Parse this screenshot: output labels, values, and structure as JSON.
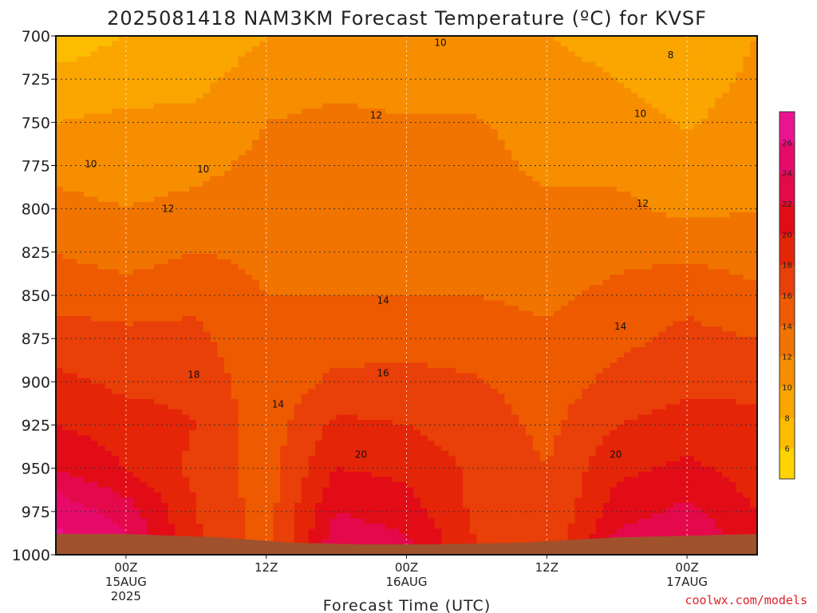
{
  "chart_data": {
    "type": "heatmap",
    "title": "2025081418 NAM3KM Forecast Temperature (ºC) for KVSF",
    "xlabel": "Forecast Time (UTC)",
    "ylabel": "",
    "credit": "coolwx.com/models",
    "y_axis": {
      "inverted": true,
      "ylim": [
        1000,
        700
      ],
      "ticks": [
        700,
        725,
        750,
        775,
        800,
        825,
        850,
        875,
        900,
        925,
        950,
        975,
        1000
      ]
    },
    "x_axis": {
      "xlim_hours": [
        -6,
        54
      ],
      "ticks": [
        {
          "hour": 0,
          "lines": [
            "00Z",
            "15AUG",
            "2025"
          ]
        },
        {
          "hour": 12,
          "lines": [
            "12Z"
          ]
        },
        {
          "hour": 24,
          "lines": [
            "00Z",
            "16AUG"
          ]
        },
        {
          "hour": 36,
          "lines": [
            "12Z"
          ]
        },
        {
          "hour": 48,
          "lines": [
            "00Z",
            "17AUG"
          ]
        }
      ]
    },
    "grid": true,
    "colorbar": {
      "placement": "right",
      "range": [
        4,
        28
      ],
      "ticks": [
        6,
        8,
        10,
        12,
        14,
        16,
        18,
        20,
        22,
        24,
        26
      ],
      "colors": [
        "#ffd400",
        "#fdbc00",
        "#faa500",
        "#f78e00",
        "#f27400",
        "#ee5a00",
        "#e93f08",
        "#e52508",
        "#e20c17",
        "#e4094a",
        "#e70a6a",
        "#ec1390"
      ]
    },
    "contour_labels": [
      {
        "value": "8",
        "hour": 46.6,
        "p": 711
      },
      {
        "value": "10",
        "hour": 26.9,
        "p": 704
      },
      {
        "value": "10",
        "hour": -3.0,
        "p": 774
      },
      {
        "value": "10",
        "hour": 6.6,
        "p": 777
      },
      {
        "value": "10",
        "hour": 44.0,
        "p": 745
      },
      {
        "value": "12",
        "hour": 3.6,
        "p": 800
      },
      {
        "value": "12",
        "hour": 21.4,
        "p": 746
      },
      {
        "value": "12",
        "hour": 44.2,
        "p": 797
      },
      {
        "value": "14",
        "hour": 13.0,
        "p": 913
      },
      {
        "value": "14",
        "hour": 22.0,
        "p": 853
      },
      {
        "value": "14",
        "hour": 42.3,
        "p": 868
      },
      {
        "value": "16",
        "hour": 22.0,
        "p": 895
      },
      {
        "value": "18",
        "hour": 5.8,
        "p": 896
      },
      {
        "value": "20",
        "hour": 20.1,
        "p": 942
      },
      {
        "value": "20",
        "hour": 41.9,
        "p": 942
      }
    ],
    "series": [
      {
        "hour": -6,
        "temps": [
          7,
          8.5,
          10,
          11.5,
          12.5,
          14,
          15.3,
          17,
          18.5,
          20,
          22,
          25.5,
          27
        ]
      },
      {
        "hour": 0,
        "temps": [
          8,
          9,
          10.5,
          11.3,
          12,
          13,
          15,
          16.5,
          17.5,
          19,
          20,
          23,
          25
        ]
      },
      {
        "hour": 6,
        "temps": [
          8.5,
          9.5,
          10.5,
          11.5,
          12.5,
          14,
          15.5,
          16.5,
          17.5,
          18,
          17.5,
          18,
          18.5
        ]
      },
      {
        "hour": 12,
        "temps": [
          10,
          11,
          12,
          12.5,
          13,
          13.5,
          14,
          14.2,
          14.5,
          14.8,
          15,
          15,
          15
        ]
      },
      {
        "hour": 18,
        "temps": [
          10.5,
          11.5,
          12.5,
          12.8,
          13,
          13.5,
          14,
          15,
          16.5,
          18.5,
          20,
          22,
          24
        ]
      },
      {
        "hour": 24,
        "temps": [
          10,
          11,
          12.2,
          12.6,
          13,
          13.5,
          14,
          15.5,
          16.5,
          18,
          19.5,
          21,
          23
        ]
      },
      {
        "hour": 30,
        "temps": [
          10,
          11,
          12.2,
          12.7,
          13,
          13.4,
          14,
          15,
          16.2,
          17,
          17.5,
          17.5,
          18
        ]
      },
      {
        "hour": 36,
        "temps": [
          10,
          10.5,
          11,
          11.5,
          12.5,
          13,
          13.5,
          14.5,
          15,
          15.5,
          16,
          16,
          16
        ]
      },
      {
        "hour": 42,
        "temps": [
          9.5,
          10,
          10.8,
          11.5,
          12.5,
          13.5,
          14.5,
          15.5,
          16.5,
          18,
          19.5,
          21,
          23.5
        ]
      },
      {
        "hour": 48,
        "temps": [
          8.2,
          9,
          9.8,
          10.5,
          11.5,
          13.5,
          15.5,
          16.5,
          17.5,
          18.8,
          20.5,
          22.5,
          24.5
        ]
      },
      {
        "hour": 54,
        "temps": [
          10,
          10.5,
          11,
          11.5,
          12,
          13,
          14.5,
          16,
          17.5,
          18.5,
          19,
          20,
          21.5
        ]
      }
    ]
  }
}
